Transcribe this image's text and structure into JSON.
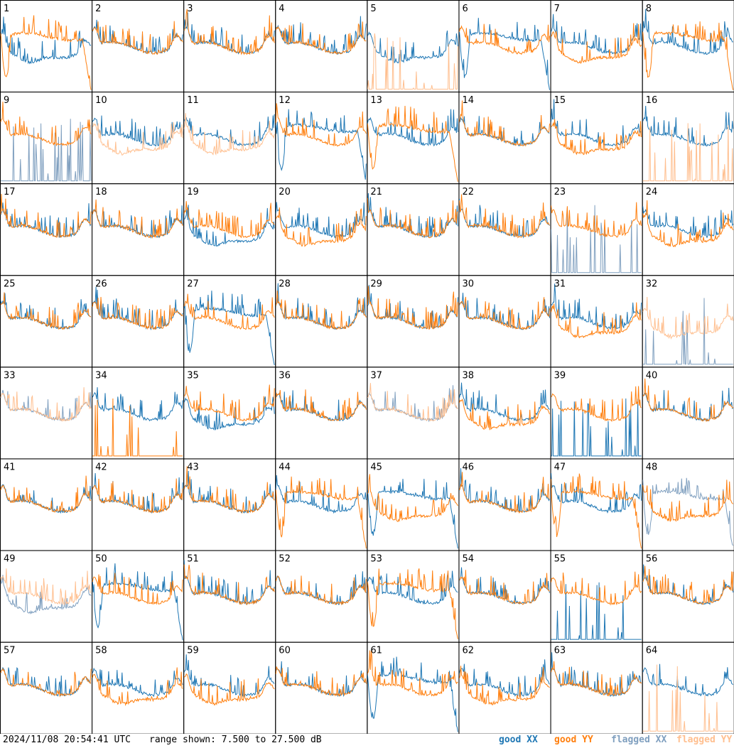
{
  "chart_data": {
    "type": "line",
    "grid_layout": "8x8 small multiples",
    "range_db": [
      7.5,
      27.5
    ],
    "colors": {
      "good_xx": "#1f77b4",
      "good_yy": "#ff7f0e",
      "flagged_xx": "#7f9fbf",
      "flagged_yy": "#ffbf8f"
    },
    "panels": [
      {
        "label": "1",
        "xx": {
          "shape": "dip",
          "state": "good"
        },
        "yy": {
          "shape": "bandpass",
          "state": "good"
        }
      },
      {
        "label": "2",
        "xx": {
          "shape": "normal",
          "state": "good"
        },
        "yy": {
          "shape": "normal",
          "state": "good"
        }
      },
      {
        "label": "3",
        "xx": {
          "shape": "normal",
          "state": "good"
        },
        "yy": {
          "shape": "normal",
          "state": "good"
        }
      },
      {
        "label": "4",
        "xx": {
          "shape": "normal",
          "state": "good"
        },
        "yy": {
          "shape": "normal",
          "state": "good"
        }
      },
      {
        "label": "5",
        "xx": {
          "shape": "dip",
          "state": "good"
        },
        "yy": {
          "shape": "spiky_low",
          "state": "flagged"
        }
      },
      {
        "label": "6",
        "xx": {
          "shape": "bandpass",
          "state": "good"
        },
        "yy": {
          "shape": "normal",
          "state": "good"
        }
      },
      {
        "label": "7",
        "xx": {
          "shape": "normal",
          "state": "good"
        },
        "yy": {
          "shape": "dip",
          "state": "good"
        }
      },
      {
        "label": "8",
        "xx": {
          "shape": "normal",
          "state": "good"
        },
        "yy": {
          "shape": "bandpass",
          "state": "good"
        }
      },
      {
        "label": "9",
        "xx": {
          "shape": "spiky_low",
          "state": "flagged"
        },
        "yy": {
          "shape": "normal",
          "state": "good"
        }
      },
      {
        "label": "10",
        "xx": {
          "shape": "normal",
          "state": "good"
        },
        "yy": {
          "shape": "dip",
          "state": "flagged"
        }
      },
      {
        "label": "11",
        "xx": {
          "shape": "normal",
          "state": "good"
        },
        "yy": {
          "shape": "dip",
          "state": "flagged"
        }
      },
      {
        "label": "12",
        "xx": {
          "shape": "bandpass",
          "state": "good"
        },
        "yy": {
          "shape": "normal",
          "state": "good"
        }
      },
      {
        "label": "13",
        "xx": {
          "shape": "normal",
          "state": "good"
        },
        "yy": {
          "shape": "bandpass",
          "state": "good"
        }
      },
      {
        "label": "14",
        "xx": {
          "shape": "normal",
          "state": "good"
        },
        "yy": {
          "shape": "normal",
          "state": "good"
        }
      },
      {
        "label": "15",
        "xx": {
          "shape": "normal",
          "state": "good"
        },
        "yy": {
          "shape": "dip",
          "state": "good"
        }
      },
      {
        "label": "16",
        "xx": {
          "shape": "normal",
          "state": "good"
        },
        "yy": {
          "shape": "spiky_low",
          "state": "flagged"
        }
      },
      {
        "label": "17",
        "xx": {
          "shape": "normal",
          "state": "good"
        },
        "yy": {
          "shape": "normal",
          "state": "good"
        }
      },
      {
        "label": "18",
        "xx": {
          "shape": "normal",
          "state": "good"
        },
        "yy": {
          "shape": "normal",
          "state": "good"
        }
      },
      {
        "label": "19",
        "xx": {
          "shape": "dip",
          "state": "good"
        },
        "yy": {
          "shape": "normal",
          "state": "good"
        }
      },
      {
        "label": "20",
        "xx": {
          "shape": "normal",
          "state": "good"
        },
        "yy": {
          "shape": "dip",
          "state": "good"
        }
      },
      {
        "label": "21",
        "xx": {
          "shape": "normal",
          "state": "good"
        },
        "yy": {
          "shape": "normal",
          "state": "good"
        }
      },
      {
        "label": "22",
        "xx": {
          "shape": "normal",
          "state": "good"
        },
        "yy": {
          "shape": "normal",
          "state": "good"
        }
      },
      {
        "label": "23",
        "xx": {
          "shape": "spiky_low",
          "state": "flagged"
        },
        "yy": {
          "shape": "normal",
          "state": "good"
        }
      },
      {
        "label": "24",
        "xx": {
          "shape": "normal",
          "state": "good"
        },
        "yy": {
          "shape": "dip",
          "state": "good"
        }
      },
      {
        "label": "25",
        "xx": {
          "shape": "normal",
          "state": "good"
        },
        "yy": {
          "shape": "normal",
          "state": "good"
        }
      },
      {
        "label": "26",
        "xx": {
          "shape": "normal",
          "state": "good"
        },
        "yy": {
          "shape": "normal",
          "state": "good"
        }
      },
      {
        "label": "27",
        "xx": {
          "shape": "bandpass",
          "state": "good"
        },
        "yy": {
          "shape": "normal",
          "state": "good"
        }
      },
      {
        "label": "28",
        "xx": {
          "shape": "normal",
          "state": "good"
        },
        "yy": {
          "shape": "normal",
          "state": "good"
        }
      },
      {
        "label": "29",
        "xx": {
          "shape": "normal",
          "state": "good"
        },
        "yy": {
          "shape": "normal",
          "state": "good"
        }
      },
      {
        "label": "30",
        "xx": {
          "shape": "normal",
          "state": "good"
        },
        "yy": {
          "shape": "normal",
          "state": "good"
        }
      },
      {
        "label": "31",
        "xx": {
          "shape": "normal",
          "state": "good"
        },
        "yy": {
          "shape": "dip",
          "state": "good"
        }
      },
      {
        "label": "32",
        "xx": {
          "shape": "spiky_low",
          "state": "flagged"
        },
        "yy": {
          "shape": "dip",
          "state": "flagged"
        }
      },
      {
        "label": "33",
        "xx": {
          "shape": "normal",
          "state": "flagged"
        },
        "yy": {
          "shape": "normal",
          "state": "flagged"
        }
      },
      {
        "label": "34",
        "xx": {
          "shape": "normal",
          "state": "good"
        },
        "yy": {
          "shape": "spiky_low",
          "state": "good"
        }
      },
      {
        "label": "35",
        "xx": {
          "shape": "dip",
          "state": "good"
        },
        "yy": {
          "shape": "normal",
          "state": "good"
        }
      },
      {
        "label": "36",
        "xx": {
          "shape": "normal",
          "state": "good"
        },
        "yy": {
          "shape": "normal",
          "state": "good"
        }
      },
      {
        "label": "37",
        "xx": {
          "shape": "normal",
          "state": "flagged"
        },
        "yy": {
          "shape": "normal",
          "state": "flagged"
        }
      },
      {
        "label": "38",
        "xx": {
          "shape": "normal",
          "state": "good"
        },
        "yy": {
          "shape": "dip",
          "state": "good"
        }
      },
      {
        "label": "39",
        "xx": {
          "shape": "spiky_low",
          "state": "good"
        },
        "yy": {
          "shape": "normal",
          "state": "good"
        }
      },
      {
        "label": "40",
        "xx": {
          "shape": "normal",
          "state": "good"
        },
        "yy": {
          "shape": "normal",
          "state": "good"
        }
      },
      {
        "label": "41",
        "xx": {
          "shape": "normal",
          "state": "good"
        },
        "yy": {
          "shape": "normal",
          "state": "good"
        }
      },
      {
        "label": "42",
        "xx": {
          "shape": "normal",
          "state": "good"
        },
        "yy": {
          "shape": "normal",
          "state": "good"
        }
      },
      {
        "label": "43",
        "xx": {
          "shape": "normal",
          "state": "good"
        },
        "yy": {
          "shape": "normal",
          "state": "good"
        }
      },
      {
        "label": "44",
        "xx": {
          "shape": "normal",
          "state": "good"
        },
        "yy": {
          "shape": "bandpass",
          "state": "good"
        }
      },
      {
        "label": "45",
        "xx": {
          "shape": "bandpass",
          "state": "good"
        },
        "yy": {
          "shape": "dip",
          "state": "good"
        }
      },
      {
        "label": "46",
        "xx": {
          "shape": "normal",
          "state": "good"
        },
        "yy": {
          "shape": "normal",
          "state": "good"
        }
      },
      {
        "label": "47",
        "xx": {
          "shape": "normal",
          "state": "good"
        },
        "yy": {
          "shape": "bandpass",
          "state": "good"
        }
      },
      {
        "label": "48",
        "xx": {
          "shape": "bandpass",
          "state": "flagged"
        },
        "yy": {
          "shape": "dip",
          "state": "good"
        }
      },
      {
        "label": "49",
        "xx": {
          "shape": "dip",
          "state": "flagged"
        },
        "yy": {
          "shape": "normal",
          "state": "flagged"
        }
      },
      {
        "label": "50",
        "xx": {
          "shape": "bandpass",
          "state": "good"
        },
        "yy": {
          "shape": "normal",
          "state": "good"
        }
      },
      {
        "label": "51",
        "xx": {
          "shape": "normal",
          "state": "good"
        },
        "yy": {
          "shape": "normal",
          "state": "good"
        }
      },
      {
        "label": "52",
        "xx": {
          "shape": "normal",
          "state": "good"
        },
        "yy": {
          "shape": "normal",
          "state": "good"
        }
      },
      {
        "label": "53",
        "xx": {
          "shape": "normal",
          "state": "good"
        },
        "yy": {
          "shape": "bandpass",
          "state": "good"
        }
      },
      {
        "label": "54",
        "xx": {
          "shape": "normal",
          "state": "good"
        },
        "yy": {
          "shape": "normal",
          "state": "good"
        }
      },
      {
        "label": "55",
        "xx": {
          "shape": "spiky_low",
          "state": "good"
        },
        "yy": {
          "shape": "normal",
          "state": "good"
        }
      },
      {
        "label": "56",
        "xx": {
          "shape": "normal",
          "state": "good"
        },
        "yy": {
          "shape": "normal",
          "state": "good"
        }
      },
      {
        "label": "57",
        "xx": {
          "shape": "normal",
          "state": "good"
        },
        "yy": {
          "shape": "normal",
          "state": "good"
        }
      },
      {
        "label": "58",
        "xx": {
          "shape": "normal",
          "state": "good"
        },
        "yy": {
          "shape": "dip",
          "state": "good"
        }
      },
      {
        "label": "59",
        "xx": {
          "shape": "normal",
          "state": "good"
        },
        "yy": {
          "shape": "dip",
          "state": "good"
        }
      },
      {
        "label": "60",
        "xx": {
          "shape": "normal",
          "state": "good"
        },
        "yy": {
          "shape": "normal",
          "state": "good"
        }
      },
      {
        "label": "61",
        "xx": {
          "shape": "bandpass",
          "state": "good"
        },
        "yy": {
          "shape": "normal",
          "state": "good"
        }
      },
      {
        "label": "62",
        "xx": {
          "shape": "normal",
          "state": "good"
        },
        "yy": {
          "shape": "dip",
          "state": "good"
        }
      },
      {
        "label": "63",
        "xx": {
          "shape": "normal",
          "state": "good"
        },
        "yy": {
          "shape": "normal",
          "state": "good"
        }
      },
      {
        "label": "64",
        "xx": {
          "shape": "normal",
          "state": "good"
        },
        "yy": {
          "shape": "spiky_low",
          "state": "flagged"
        }
      }
    ]
  },
  "footer": {
    "timestamp": "2024/11/08 20:54:41 UTC",
    "range_text": "range shown: 7.500 to 27.500 dB",
    "legend": {
      "good_xx": "good XX",
      "good_yy": "good YY",
      "flagged_xx": "flagged XX",
      "flagged_yy": "flagged YY"
    }
  }
}
